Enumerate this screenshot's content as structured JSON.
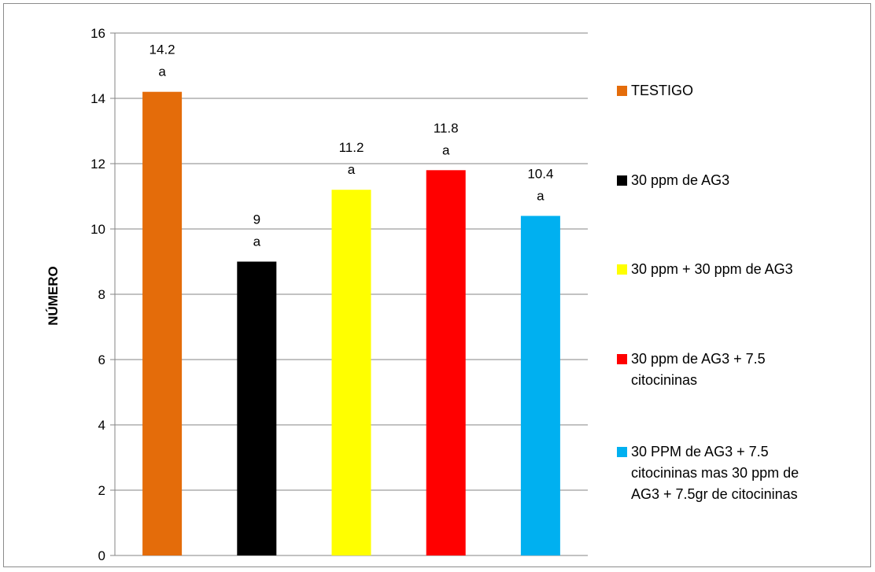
{
  "chart_data": {
    "type": "bar",
    "title": "",
    "xlabel": "",
    "ylabel": "NÚMERO",
    "ylim": [
      0,
      16
    ],
    "yticks": [
      0,
      2,
      4,
      6,
      8,
      10,
      12,
      14,
      16
    ],
    "grid": true,
    "legend_position": "right",
    "categories": [
      "TESTIGO",
      "30 ppm de AG3",
      "30 ppm + 30 ppm de AG3",
      "30 ppm de AG3 + 7.5 citocininas",
      "30 PPM de AG3 + 7.5 citocininas mas 30 ppm de AG3 + 7.5gr de citocininas"
    ],
    "values": [
      14.2,
      9,
      11.2,
      11.8,
      10.4
    ],
    "value_labels": [
      "14.2",
      "9",
      "11.2",
      "11.8",
      "10.4"
    ],
    "significance_letters": [
      "a",
      "a",
      "a",
      "a",
      "a"
    ],
    "colors": [
      "#e46c0a",
      "#000000",
      "#ffff00",
      "#ff0000",
      "#00b0f0"
    ],
    "legend": [
      {
        "label_lines": [
          "TESTIGO"
        ]
      },
      {
        "label_lines": [
          "30 ppm de AG3"
        ]
      },
      {
        "label_lines": [
          "30 ppm + 30 ppm de AG3"
        ]
      },
      {
        "label_lines": [
          "30 ppm de AG3 + 7.5",
          "citocininas"
        ]
      },
      {
        "label_lines": [
          "30 PPM de AG3 + 7.5",
          "citocininas mas 30 ppm de",
          "AG3 + 7.5gr de citocininas"
        ]
      }
    ]
  }
}
